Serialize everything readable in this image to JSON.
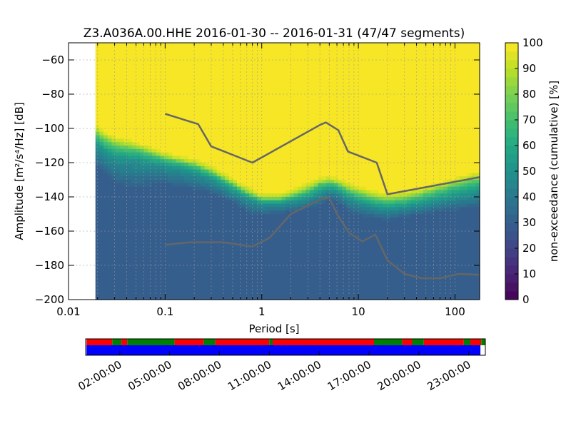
{
  "chart_data": [
    {
      "type": "heatmap",
      "title": "Z3.A036A.00.HHE   2016-01-30 -- 2016-01-31  (47/47 segments)",
      "xlabel": "Period [s]",
      "ylabel": "Amplitude [m²/s⁴/Hz] [dB]",
      "x_scale": "log",
      "xlim": [
        0.01,
        180
      ],
      "ylim": [
        -200,
        -50
      ],
      "x_ticks": [
        0.01,
        0.1,
        1,
        10,
        100
      ],
      "x_tick_labels": [
        "0.01",
        "0.1",
        "1",
        "10",
        "100"
      ],
      "y_ticks": [
        -200,
        -180,
        -160,
        -140,
        -120,
        -100,
        -80,
        -60
      ],
      "y_tick_labels": [
        "−200",
        "−180",
        "−160",
        "−140",
        "−120",
        "−100",
        "−80",
        "−60"
      ],
      "grid": true,
      "data_start_period": 0.019,
      "colorbar": {
        "label": "non-exceedance (cumulative) [%]",
        "min": 0,
        "max": 100,
        "ticks": [
          0,
          10,
          20,
          30,
          40,
          50,
          60,
          70,
          80,
          90,
          100
        ],
        "tick_labels": [
          "0",
          "10",
          "20",
          "30",
          "40",
          "50",
          "60",
          "70",
          "80",
          "90",
          "100"
        ]
      },
      "percentile_bands": {
        "period": [
          0.019,
          0.02,
          0.022,
          0.025,
          0.03,
          0.035,
          0.05,
          0.1,
          0.2,
          0.3,
          0.5,
          0.7,
          1,
          1.5,
          2,
          3,
          4,
          5,
          6,
          8,
          10,
          15,
          20,
          30,
          50,
          100,
          180
        ],
        "p30": [
          -118,
          -123,
          -126,
          -128,
          -132,
          -134,
          -135,
          -133,
          -136,
          -138,
          -143,
          -149,
          -151,
          -150,
          -149,
          -147,
          -145,
          -142,
          -143,
          -149,
          -151,
          -153,
          -154,
          -152,
          -150,
          -148,
          -146
        ],
        "p50": [
          -108,
          -110,
          -112,
          -115,
          -117,
          -118,
          -119,
          -122,
          -126,
          -130,
          -137,
          -141,
          -144,
          -144,
          -143,
          -141,
          -138,
          -136,
          -137,
          -141,
          -143,
          -146,
          -147,
          -146,
          -144,
          -140,
          -137
        ],
        "p70": [
          -103,
          -105,
          -107,
          -109,
          -111,
          -112,
          -113,
          -118,
          -122,
          -126,
          -133,
          -138,
          -142,
          -142,
          -140,
          -137,
          -133,
          -132,
          -133,
          -137,
          -139,
          -142,
          -143,
          -142,
          -139,
          -134,
          -131
        ],
        "p90": [
          -99,
          -101,
          -103,
          -105,
          -107,
          -108,
          -110,
          -116,
          -120,
          -124,
          -131,
          -136,
          -140,
          -140,
          -138,
          -134,
          -131,
          -130,
          -131,
          -134,
          -136,
          -139,
          -140,
          -139,
          -136,
          -131,
          -127
        ]
      },
      "series": [
        {
          "name": "",
          "x": [
            0.1,
            0.22,
            0.3,
            0.8,
            4.0,
            4.6,
            6.2,
            7.8,
            15.5,
            20,
            180
          ],
          "y": [
            -91.5,
            -97.5,
            -110.5,
            -120,
            -98,
            -96.5,
            -101,
            -113.5,
            -120,
            -138.5,
            -128.5
          ]
        },
        {
          "name": "",
          "x": [
            0.1,
            0.18,
            0.4,
            0.8,
            1.2,
            2.0,
            3.0,
            4.3,
            5.0,
            6.0,
            8.0,
            11,
            15,
            20,
            30,
            45,
            70,
            110,
            180
          ],
          "y": [
            -168,
            -166.5,
            -166.5,
            -169,
            -164,
            -150,
            -145,
            -141,
            -140.5,
            -150,
            -161,
            -166,
            -162,
            -177,
            -185,
            -187.5,
            -187.5,
            -185,
            -185.5
          ]
        }
      ]
    },
    {
      "type": "timeline",
      "x_tick_labels": [
        "02:00:00",
        "05:00:00",
        "08:00:00",
        "11:00:00",
        "14:00:00",
        "17:00:00",
        "20:00:00",
        "23:00:00"
      ],
      "x_tick_hours": [
        2,
        5,
        8,
        11,
        14,
        17,
        20,
        23
      ],
      "time_range_hours": [
        -0.05,
        24.0
      ],
      "status_colors": {
        "red": "#ff0000",
        "green": "#008000",
        "blue": "#0000ff"
      },
      "top_segments": [
        {
          "start": 0.0,
          "end": 1.55,
          "color": "red"
        },
        {
          "start": 1.55,
          "end": 2.1,
          "color": "green"
        },
        {
          "start": 2.1,
          "end": 2.45,
          "color": "red"
        },
        {
          "start": 2.45,
          "end": 5.3,
          "color": "green"
        },
        {
          "start": 5.3,
          "end": 7.05,
          "color": "red"
        },
        {
          "start": 7.05,
          "end": 7.75,
          "color": "green"
        },
        {
          "start": 7.75,
          "end": 11.0,
          "color": "red"
        },
        {
          "start": 11.0,
          "end": 11.2,
          "color": "green"
        },
        {
          "start": 11.2,
          "end": 17.3,
          "color": "red"
        },
        {
          "start": 17.3,
          "end": 19.0,
          "color": "green"
        },
        {
          "start": 19.0,
          "end": 19.6,
          "color": "red"
        },
        {
          "start": 19.6,
          "end": 20.3,
          "color": "green"
        },
        {
          "start": 20.3,
          "end": 22.7,
          "color": "red"
        },
        {
          "start": 22.7,
          "end": 23.1,
          "color": "green"
        },
        {
          "start": 23.1,
          "end": 23.75,
          "color": "red"
        },
        {
          "start": 23.75,
          "end": 24.0,
          "color": "green"
        }
      ],
      "bottom_segments": [
        {
          "start": 0.0,
          "end": 23.7,
          "color": "blue"
        }
      ]
    }
  ]
}
